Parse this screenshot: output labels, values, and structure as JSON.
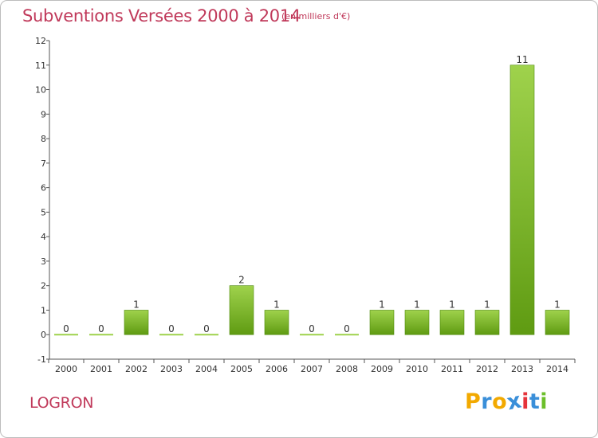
{
  "title": "Subventions Versées 2000 à 2014",
  "subtitle": "(en milliers d'€)",
  "commune": "LOGRON",
  "logo": {
    "letters": [
      "P",
      "r",
      "o",
      "x",
      "i",
      "t",
      "i"
    ],
    "colors": [
      "#f2a900",
      "#3a8fd9",
      "#f2a900",
      "#3a8fd9",
      "#e5333a",
      "#3a8fd9",
      "#6cbf2a"
    ]
  },
  "colors": {
    "bar_top": "#9fd24c",
    "bar_bottom": "#5f9b12",
    "text_accent": "#c0395a"
  },
  "chart_data": {
    "type": "bar",
    "categories": [
      "2000",
      "2001",
      "2002",
      "2003",
      "2004",
      "2005",
      "2006",
      "2007",
      "2008",
      "2009",
      "2010",
      "2011",
      "2012",
      "2013",
      "2014"
    ],
    "values": [
      0,
      0,
      1,
      0,
      0,
      2,
      1,
      0,
      0,
      1,
      1,
      1,
      1,
      11,
      1
    ],
    "data_labels": [
      "0",
      "0",
      "1",
      "0",
      "0",
      "2",
      "1",
      "0",
      "0",
      "1",
      "1",
      "1",
      "1",
      "11",
      "1"
    ],
    "yticks": [
      "-1",
      "0",
      "1",
      "2",
      "3",
      "4",
      "5",
      "6",
      "7",
      "8",
      "9",
      "10",
      "11",
      "12"
    ],
    "ylim": [
      -1,
      12
    ],
    "grid": false,
    "legend": "none"
  }
}
